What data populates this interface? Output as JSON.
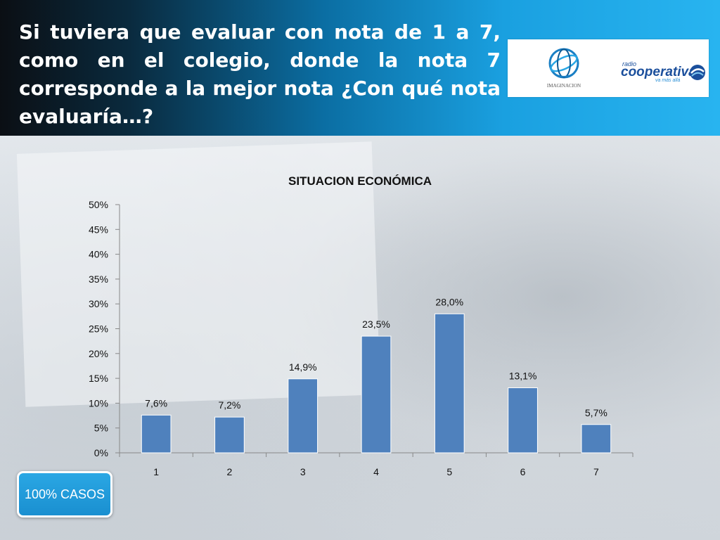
{
  "header": {
    "title": "Si tuviera que evaluar con nota de 1 a 7, como en el colegio, donde la nota 7 corresponde a la mejor nota ¿Con qué nota evaluaría…?"
  },
  "logos": {
    "imaginacion": {
      "name": "IMAGINACION",
      "icon": "globe-logo-icon"
    },
    "cooperativa": {
      "radio": "radio",
      "name": "cooperativa",
      "tagline": "va más allá",
      "icon": "cooperativa-swirl-icon"
    }
  },
  "badge": {
    "label": "100% CASOS"
  },
  "colors": {
    "bar": "#4f81bd",
    "header_start": "#0b0f14",
    "header_end": "#28b4f0",
    "badge": "#1f9ad8"
  },
  "chart_data": {
    "type": "bar",
    "title": "SITUACION ECONÓMICA",
    "categories": [
      "1",
      "2",
      "3",
      "4",
      "5",
      "6",
      "7"
    ],
    "values": [
      7.6,
      7.2,
      14.9,
      23.5,
      28.0,
      13.1,
      5.7
    ],
    "value_labels": [
      "7,6%",
      "7,2%",
      "14,9%",
      "23,5%",
      "28,0%",
      "13,1%",
      "5,7%"
    ],
    "y_ticks": [
      0,
      5,
      10,
      15,
      20,
      25,
      30,
      35,
      40,
      45,
      50
    ],
    "y_tick_labels": [
      "0%",
      "5%",
      "10%",
      "15%",
      "20%",
      "25%",
      "30%",
      "35%",
      "40%",
      "45%",
      "50%"
    ],
    "ylim": [
      0,
      50
    ],
    "grid": false,
    "legend": "none"
  }
}
